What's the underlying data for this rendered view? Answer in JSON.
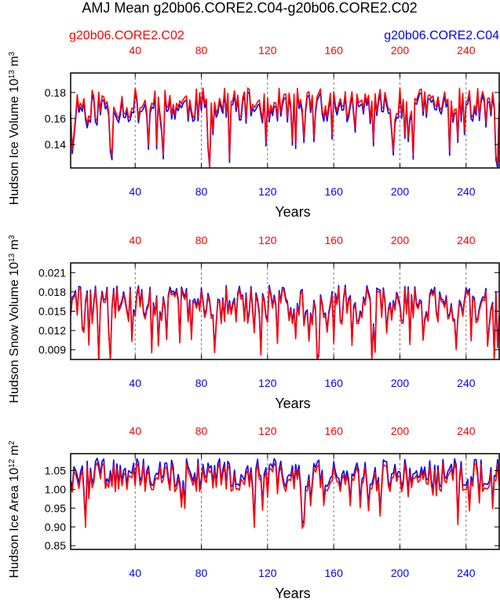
{
  "title": "AMJ Mean g20b06.CORE2.C04-g20b06.CORE2.C02",
  "colors": {
    "red": "#ff0000",
    "blue": "#0000ff",
    "frame": "#000000",
    "grid": "#555555"
  },
  "chart_data": [
    {
      "type": "line",
      "id": "ice_volume",
      "left_label": "g20b06.CORE2.C02",
      "right_label": "g20b06.CORE2.C04",
      "ylabel": "Hudson Ice Volume",
      "ylabel_unit": "10",
      "ylabel_exp": "13",
      "ylabel_unit2": "m",
      "ylabel_unit2_exp": "3",
      "xlabel": "Years",
      "xlim": [
        1,
        260
      ],
      "ylim": [
        0.122,
        0.195
      ],
      "yticks": [
        0.14,
        0.16,
        0.18
      ],
      "ytick_labels": [
        "0.14",
        "0.16",
        "0.18"
      ],
      "xticks": [
        40,
        80,
        120,
        160,
        200,
        240
      ],
      "xtick_labels": [
        "40",
        "80",
        "120",
        "160",
        "200",
        "240"
      ],
      "series": [
        {
          "name": "g20b06.CORE2.C04",
          "color": "#0000ff",
          "mean": 0.169,
          "amp": 0.019,
          "offset": -0.002,
          "seed": 11
        },
        {
          "name": "g20b06.CORE2.C02",
          "color": "#ff0000",
          "mean": 0.17,
          "amp": 0.019,
          "offset": 0.0,
          "seed": 11
        }
      ]
    },
    {
      "type": "line",
      "id": "snow_volume",
      "ylabel": "Hudson Snow Volume",
      "ylabel_unit": "10",
      "ylabel_exp": "13",
      "ylabel_unit2": "m",
      "ylabel_unit2_exp": "3",
      "xlabel": "Years",
      "xlim": [
        1,
        260
      ],
      "ylim": [
        0.0075,
        0.0225
      ],
      "yticks": [
        0.009,
        0.012,
        0.015,
        0.018,
        0.021
      ],
      "ytick_labels": [
        "0.009",
        "0.012",
        "0.015",
        "0.018",
        "0.021"
      ],
      "xticks": [
        40,
        80,
        120,
        160,
        200,
        240
      ],
      "xtick_labels": [
        "40",
        "80",
        "120",
        "160",
        "200",
        "240"
      ],
      "series": [
        {
          "name": "g20b06.CORE2.C04",
          "color": "#0000ff",
          "mean": 0.0155,
          "amp": 0.0045,
          "offset": 0.0004,
          "seed": 29
        },
        {
          "name": "g20b06.CORE2.C02",
          "color": "#ff0000",
          "mean": 0.0155,
          "amp": 0.0045,
          "offset": 0.0,
          "seed": 29
        }
      ]
    },
    {
      "type": "line",
      "id": "ice_area",
      "ylabel": "Hudson Ice Area",
      "ylabel_unit": "10",
      "ylabel_exp": "12",
      "ylabel_unit2": "m",
      "ylabel_unit2_exp": "2",
      "xlabel": "Years",
      "xlim": [
        1,
        260
      ],
      "ylim": [
        0.84,
        1.095
      ],
      "yticks": [
        0.85,
        0.9,
        0.95,
        1.0,
        1.05
      ],
      "ytick_labels": [
        "0.85",
        "0.90",
        "0.95",
        "1.00",
        "1.05"
      ],
      "xticks": [
        40,
        80,
        120,
        160,
        200,
        240
      ],
      "xtick_labels": [
        "40",
        "80",
        "120",
        "160",
        "200",
        "240"
      ],
      "series": [
        {
          "name": "g20b06.CORE2.C04",
          "color": "#0000ff",
          "mean": 1.028,
          "amp": 0.06,
          "offset": 0.012,
          "seed": 47
        },
        {
          "name": "g20b06.CORE2.C02",
          "color": "#ff0000",
          "mean": 1.028,
          "amp": 0.06,
          "offset": 0.0,
          "seed": 47
        }
      ]
    }
  ]
}
